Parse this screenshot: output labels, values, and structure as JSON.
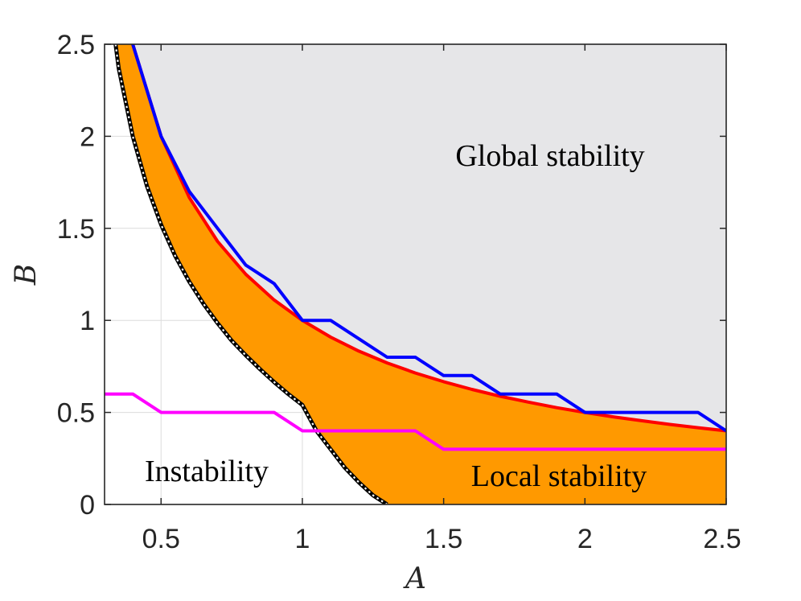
{
  "chart_data": {
    "type": "area",
    "xlabel": "A",
    "ylabel": "B",
    "xlim": [
      0.3,
      2.5
    ],
    "ylim": [
      0,
      2.5
    ],
    "xticks": [
      0.5,
      1,
      1.5,
      2,
      2.5
    ],
    "xtick_labels": [
      "0.5",
      "1",
      "1.5",
      "2",
      "2.5"
    ],
    "yticks": [
      0,
      0.5,
      1,
      1.5,
      2,
      2.5
    ],
    "ytick_labels": [
      "0",
      "0.5",
      "1",
      "1.5",
      "2",
      "2.5"
    ],
    "grid": true,
    "regions": [
      {
        "name": "global-stability",
        "label": "Global stability",
        "color": "#e6e6e8"
      },
      {
        "name": "local-stability",
        "label": "Local stability",
        "color": "#ff9900"
      },
      {
        "name": "instability",
        "label": "Instability",
        "color": "#ffffff"
      }
    ],
    "series": [
      {
        "name": "instability-boundary",
        "color": "#000000",
        "style": "dotted",
        "x": [
          0.339,
          0.35,
          0.4,
          0.45,
          0.5,
          0.55,
          0.6,
          0.65,
          0.7,
          0.75,
          0.8,
          0.85,
          0.9,
          0.95,
          1.0,
          1.05,
          1.1,
          1.15,
          1.2,
          1.25,
          1.3
        ],
        "y": [
          2.5,
          2.37,
          2.0,
          1.73,
          1.52,
          1.35,
          1.21,
          1.09,
          0.985,
          0.89,
          0.81,
          0.735,
          0.665,
          0.6,
          0.54,
          0.4,
          0.3,
          0.2,
          0.12,
          0.05,
          0
        ]
      },
      {
        "name": "analytical-global-boundary",
        "color": "#ff0000",
        "x": [
          0.4,
          0.5,
          0.6,
          0.7,
          0.8,
          0.9,
          1.0,
          1.1,
          1.2,
          1.3,
          1.4,
          1.5,
          1.6,
          1.7,
          1.8,
          1.9,
          2.0,
          2.1,
          2.2,
          2.3,
          2.4,
          2.5
        ],
        "y": [
          2.5,
          2.0,
          1.667,
          1.429,
          1.25,
          1.111,
          1.0,
          0.909,
          0.833,
          0.769,
          0.714,
          0.667,
          0.625,
          0.588,
          0.556,
          0.526,
          0.5,
          0.476,
          0.455,
          0.435,
          0.417,
          0.4
        ]
      },
      {
        "name": "numerical-global-boundary",
        "color": "#0000ff",
        "x": [
          0.4,
          0.5,
          0.6,
          0.7,
          0.8,
          0.9,
          1.0,
          1.1,
          1.2,
          1.3,
          1.4,
          1.5,
          1.6,
          1.7,
          1.8,
          1.9,
          2.0,
          2.1,
          2.2,
          2.3,
          2.4,
          2.5
        ],
        "y": [
          2.5,
          2.0,
          1.7,
          1.5,
          1.3,
          1.2,
          1.0,
          1.0,
          0.9,
          0.8,
          0.8,
          0.7,
          0.7,
          0.6,
          0.6,
          0.6,
          0.5,
          0.5,
          0.5,
          0.5,
          0.5,
          0.4
        ]
      },
      {
        "name": "local-stability-boundary",
        "color": "#ff00ff",
        "x": [
          0.3,
          0.4,
          0.5,
          0.6,
          0.7,
          0.8,
          0.9,
          1.0,
          1.1,
          1.2,
          1.3,
          1.4,
          1.5,
          1.6,
          1.7,
          1.8,
          1.9,
          2.0,
          2.1,
          2.2,
          2.3,
          2.4,
          2.5
        ],
        "y": [
          0.6,
          0.6,
          0.5,
          0.5,
          0.5,
          0.5,
          0.5,
          0.4,
          0.4,
          0.4,
          0.4,
          0.4,
          0.3,
          0.3,
          0.3,
          0.3,
          0.3,
          0.3,
          0.3,
          0.3,
          0.3,
          0.3,
          0.3
        ]
      }
    ]
  }
}
